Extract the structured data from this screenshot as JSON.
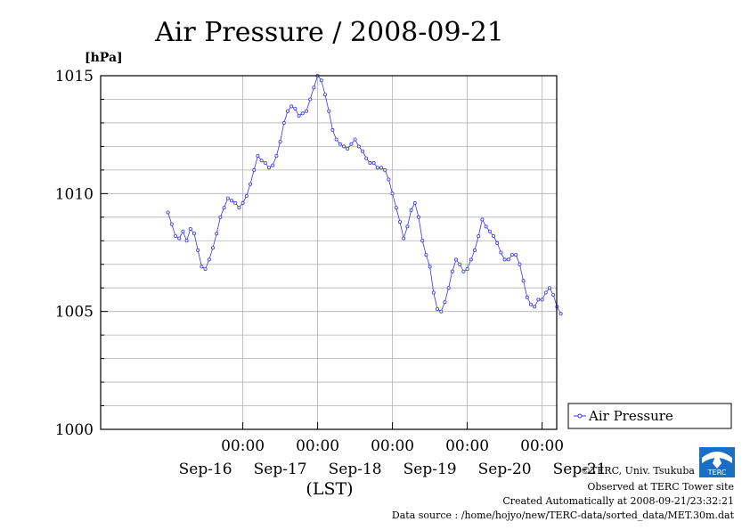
{
  "chart_data": {
    "type": "line",
    "title": "Air Pressure / 2008-09-21",
    "ylabel": "[hPa]",
    "xlabel": "(LST)",
    "ylim": [
      1000,
      1015
    ],
    "yticks": [
      1000,
      1005,
      1010,
      1015
    ],
    "xlim": [
      0,
      6
    ],
    "xticks": [
      {
        "x": 1,
        "time": "00:00",
        "day": "Sep-16"
      },
      {
        "x": 2,
        "time": "00:00",
        "day": "Sep-17"
      },
      {
        "x": 3,
        "time": "00:00",
        "day": "Sep-18"
      },
      {
        "x": 4,
        "time": "00:00",
        "day": "Sep-19"
      },
      {
        "x": 5,
        "time": "00:00",
        "day": "Sep-20"
      },
      {
        "x": 6,
        "time": "",
        "day": "Sep-21"
      }
    ],
    "grid": true,
    "legend_position": "right",
    "series": [
      {
        "name": "Air Pressure",
        "color": "#3333ee",
        "points": [
          [
            0.0,
            1009.2
          ],
          [
            0.05,
            1008.7
          ],
          [
            0.1,
            1008.2
          ],
          [
            0.15,
            1008.1
          ],
          [
            0.2,
            1008.4
          ],
          [
            0.25,
            1008.0
          ],
          [
            0.3,
            1008.5
          ],
          [
            0.35,
            1008.3
          ],
          [
            0.4,
            1007.6
          ],
          [
            0.45,
            1006.9
          ],
          [
            0.5,
            1006.8
          ],
          [
            0.55,
            1007.2
          ],
          [
            0.6,
            1007.7
          ],
          [
            0.65,
            1008.3
          ],
          [
            0.7,
            1009.0
          ],
          [
            0.75,
            1009.4
          ],
          [
            0.8,
            1009.8
          ],
          [
            0.85,
            1009.7
          ],
          [
            0.9,
            1009.6
          ],
          [
            0.95,
            1009.4
          ],
          [
            1.0,
            1009.6
          ],
          [
            1.05,
            1009.9
          ],
          [
            1.1,
            1010.4
          ],
          [
            1.15,
            1011.0
          ],
          [
            1.2,
            1011.6
          ],
          [
            1.25,
            1011.4
          ],
          [
            1.3,
            1011.3
          ],
          [
            1.35,
            1011.1
          ],
          [
            1.4,
            1011.2
          ],
          [
            1.45,
            1011.6
          ],
          [
            1.5,
            1012.2
          ],
          [
            1.55,
            1013.0
          ],
          [
            1.6,
            1013.5
          ],
          [
            1.65,
            1013.7
          ],
          [
            1.7,
            1013.6
          ],
          [
            1.75,
            1013.3
          ],
          [
            1.8,
            1013.4
          ],
          [
            1.85,
            1013.5
          ],
          [
            1.9,
            1014.0
          ],
          [
            1.95,
            1014.5
          ],
          [
            2.0,
            1015.0
          ],
          [
            2.05,
            1014.8
          ],
          [
            2.1,
            1014.2
          ],
          [
            2.15,
            1013.5
          ],
          [
            2.2,
            1012.7
          ],
          [
            2.25,
            1012.3
          ],
          [
            2.3,
            1012.1
          ],
          [
            2.35,
            1012.0
          ],
          [
            2.4,
            1011.9
          ],
          [
            2.45,
            1012.1
          ],
          [
            2.5,
            1012.3
          ],
          [
            2.55,
            1012.0
          ],
          [
            2.6,
            1011.8
          ],
          [
            2.65,
            1011.5
          ],
          [
            2.7,
            1011.3
          ],
          [
            2.75,
            1011.3
          ],
          [
            2.8,
            1011.1
          ],
          [
            2.85,
            1011.1
          ],
          [
            2.9,
            1011.0
          ],
          [
            2.95,
            1010.6
          ],
          [
            3.0,
            1010.0
          ],
          [
            3.05,
            1009.4
          ],
          [
            3.1,
            1008.8
          ],
          [
            3.15,
            1008.1
          ],
          [
            3.2,
            1008.6
          ],
          [
            3.25,
            1009.3
          ],
          [
            3.3,
            1009.6
          ],
          [
            3.35,
            1009.0
          ],
          [
            3.4,
            1008.0
          ],
          [
            3.45,
            1007.4
          ],
          [
            3.5,
            1006.9
          ],
          [
            3.55,
            1005.8
          ],
          [
            3.6,
            1005.1
          ],
          [
            3.65,
            1005.0
          ],
          [
            3.7,
            1005.4
          ],
          [
            3.75,
            1006.0
          ],
          [
            3.8,
            1006.7
          ],
          [
            3.85,
            1007.2
          ],
          [
            3.9,
            1007.0
          ],
          [
            3.95,
            1006.7
          ],
          [
            4.0,
            1006.8
          ],
          [
            4.05,
            1007.2
          ],
          [
            4.1,
            1007.6
          ],
          [
            4.15,
            1008.2
          ],
          [
            4.2,
            1008.9
          ],
          [
            4.25,
            1008.6
          ],
          [
            4.3,
            1008.4
          ],
          [
            4.35,
            1008.2
          ],
          [
            4.4,
            1007.9
          ],
          [
            4.45,
            1007.5
          ],
          [
            4.5,
            1007.2
          ],
          [
            4.55,
            1007.2
          ],
          [
            4.6,
            1007.4
          ],
          [
            4.65,
            1007.4
          ],
          [
            4.7,
            1007.0
          ],
          [
            4.75,
            1006.3
          ],
          [
            4.8,
            1005.6
          ],
          [
            4.85,
            1005.3
          ],
          [
            4.9,
            1005.2
          ],
          [
            4.95,
            1005.5
          ],
          [
            5.0,
            1005.5
          ],
          [
            5.05,
            1005.8
          ],
          [
            5.1,
            1006.0
          ],
          [
            5.15,
            1005.7
          ],
          [
            5.2,
            1005.2
          ],
          [
            5.25,
            1004.9
          ]
        ]
      }
    ],
    "credits": [
      "©TERC, Univ. Tsukuba",
      "Observed at TERC Tower site",
      "Created Automatically at 2008-09-21/23:32:21",
      "Data source : /home/hojyo/new/TERC-data/sorted_data/MET.30m.dat"
    ],
    "logo_text": "TERC"
  }
}
